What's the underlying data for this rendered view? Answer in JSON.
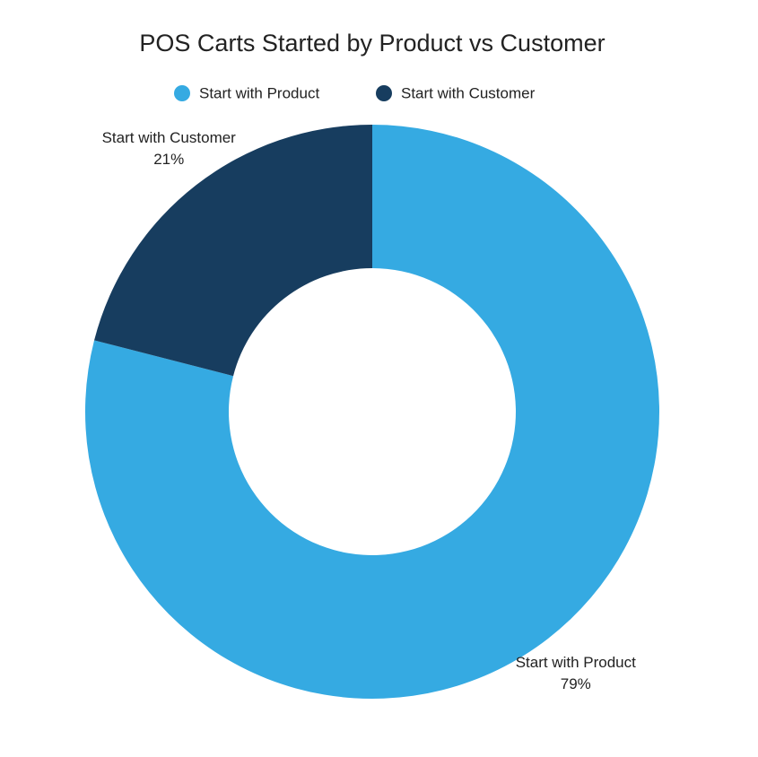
{
  "chart_data": {
    "type": "donut",
    "title": "POS Carts Started by Product vs Customer",
    "categories": [
      "Start with Product",
      "Start with Customer"
    ],
    "values": [
      79,
      21
    ],
    "value_labels": [
      "79%",
      "21%"
    ],
    "colors": [
      "#35aae2",
      "#173d5f"
    ]
  }
}
